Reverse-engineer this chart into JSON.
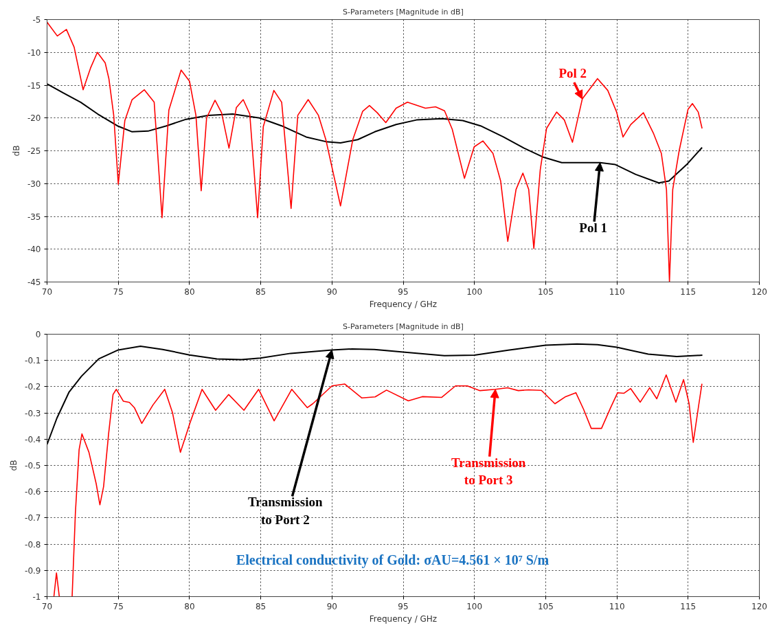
{
  "chart_data": [
    {
      "type": "line",
      "title": "S-Parameters [Magnitude in dB]",
      "xlabel": "Frequency / GHz",
      "ylabel": "dB",
      "xlim": [
        70,
        120
      ],
      "ylim": [
        -45,
        -5
      ],
      "xticks": [
        70,
        75,
        80,
        85,
        90,
        95,
        100,
        105,
        110,
        115,
        120
      ],
      "yticks": [
        -45,
        -40,
        -35,
        -30,
        -25,
        -20,
        -15,
        -10,
        -5
      ],
      "grid": true,
      "series": [
        {
          "name": "Pol 1",
          "color": "#000000",
          "x": [
            70,
            71.15,
            72.36,
            73.56,
            74.94,
            75.97,
            77.09,
            78.38,
            79.76,
            81.31,
            83.03,
            84.92,
            86.47,
            88.19,
            89.57,
            90.6,
            91.81,
            93.01,
            94.5,
            95.93,
            97.72,
            99.18,
            100.43,
            102.04,
            103.48,
            104.87,
            106.13,
            107.56,
            108.82,
            109.89,
            111.32,
            112.94,
            113.65,
            114.9,
            115.98
          ],
          "values": [
            -14.8,
            -16.2,
            -17.6,
            -19.4,
            -21.2,
            -22.1,
            -22.0,
            -21.2,
            -20.2,
            -19.6,
            -19.4,
            -20.0,
            -21.2,
            -22.9,
            -23.6,
            -23.8,
            -23.3,
            -22.1,
            -21.0,
            -20.3,
            -20.1,
            -20.4,
            -21.2,
            -22.9,
            -24.6,
            -26.0,
            -26.8,
            -26.8,
            -26.8,
            -27.1,
            -28.6,
            -29.9,
            -29.6,
            -27.1,
            -24.5
          ]
        },
        {
          "name": "Pol 2",
          "color": "#ff0000",
          "x": [
            70,
            70.72,
            71.36,
            71.9,
            72.53,
            73.05,
            73.53,
            74.08,
            74.34,
            74.68,
            75.0,
            75.46,
            75.97,
            76.83,
            77.52,
            78.07,
            78.55,
            79.41,
            80.0,
            80.45,
            80.82,
            81.2,
            81.79,
            82.25,
            82.77,
            83.29,
            83.77,
            84.23,
            84.78,
            85.18,
            85.92,
            86.47,
            87.13,
            87.6,
            88.33,
            89.05,
            89.57,
            90.6,
            91.46,
            92.15,
            92.63,
            93.18,
            93.78,
            94.5,
            95.3,
            96.56,
            97.27,
            97.9,
            98.44,
            99.3,
            99.98,
            100.6,
            101.3,
            101.84,
            102.34,
            102.92,
            103.4,
            103.81,
            104.17,
            104.62,
            105.06,
            105.77,
            106.31,
            106.88,
            107.57,
            108.64,
            109.36,
            109.98,
            110.43,
            110.97,
            111.86,
            112.58,
            113.12,
            113.48,
            113.69,
            113.92,
            114.37,
            114.99,
            115.3,
            115.71,
            115.98
          ],
          "values": [
            -5.4,
            -7.5,
            -6.5,
            -9.2,
            -15.7,
            -12.4,
            -10.0,
            -11.6,
            -14.0,
            -19.6,
            -30.1,
            -20.4,
            -17.2,
            -15.7,
            -17.6,
            -35.2,
            -18.8,
            -12.7,
            -14.4,
            -19.6,
            -31.1,
            -20.0,
            -17.3,
            -19.2,
            -24.6,
            -18.4,
            -17.2,
            -19.4,
            -35.2,
            -21.3,
            -15.8,
            -17.6,
            -33.8,
            -19.6,
            -17.2,
            -19.6,
            -23.3,
            -33.4,
            -23.3,
            -19.0,
            -18.1,
            -19.2,
            -20.7,
            -18.5,
            -17.6,
            -18.5,
            -18.3,
            -18.9,
            -21.7,
            -29.2,
            -24.4,
            -23.5,
            -25.4,
            -29.6,
            -38.8,
            -30.9,
            -28.4,
            -30.9,
            -39.9,
            -27.9,
            -21.6,
            -19.1,
            -20.3,
            -23.7,
            -17.1,
            -14.0,
            -15.8,
            -19.1,
            -22.9,
            -21.0,
            -19.2,
            -22.4,
            -25.4,
            -30.9,
            -45,
            -30.9,
            -25.0,
            -18.7,
            -17.8,
            -19.1,
            -21.6
          ]
        }
      ]
    },
    {
      "type": "line",
      "title": "S-Parameters [Magnitude in dB]",
      "xlabel": "Frequency / GHz",
      "ylabel": "dB",
      "xlim": [
        70,
        120
      ],
      "ylim": [
        -1,
        0
      ],
      "xticks": [
        70,
        75,
        80,
        85,
        90,
        95,
        100,
        105,
        110,
        115,
        120
      ],
      "yticks": [
        -1,
        -0.9,
        -0.8,
        -0.7,
        -0.6,
        -0.5,
        -0.4,
        -0.3,
        -0.2,
        -0.1,
        0
      ],
      "grid": true,
      "annotations": [
        "Electrical conductivity of Gold: σAU=4.561 × 10⁷ S/m"
      ],
      "series": [
        {
          "name": "Transmission\nto Port 2",
          "color": "#000000",
          "x": [
            70,
            70.69,
            71.55,
            72.42,
            73.63,
            75.0,
            76.56,
            78.12,
            80.0,
            81.92,
            83.64,
            84.97,
            87.1,
            90.0,
            91.42,
            92.97,
            95.0,
            97.89,
            100.0,
            102.37,
            105.0,
            107.2,
            108.64,
            110.0,
            112.2,
            114.2,
            116.0
          ],
          "values": [
            -0.42,
            -0.32,
            -0.22,
            -0.16,
            -0.094,
            -0.06,
            -0.046,
            -0.058,
            -0.079,
            -0.094,
            -0.097,
            -0.091,
            -0.073,
            -0.06,
            -0.056,
            -0.058,
            -0.068,
            -0.082,
            -0.08,
            -0.061,
            -0.042,
            -0.037,
            -0.04,
            -0.05,
            -0.076,
            -0.085,
            -0.08
          ]
        },
        {
          "name": "Transmission\nto Port 3",
          "color": "#ff0000",
          "x": [
            70.48,
            70.66,
            70.86,
            71.3,
            71.76,
            71.99,
            72.25,
            72.45,
            72.94,
            73.45,
            73.71,
            73.97,
            74.32,
            74.63,
            74.86,
            75.35,
            75.78,
            76.13,
            76.65,
            77.43,
            78.26,
            78.81,
            79.36,
            80.02,
            80.88,
            81.83,
            82.75,
            83.82,
            84.85,
            85.94,
            87.18,
            88.27,
            88.65,
            90.0,
            90.9,
            92.1,
            93.03,
            93.83,
            95.36,
            96.34,
            97.69,
            98.67,
            99.5,
            100.39,
            101.47,
            102.33,
            103.08,
            103.8,
            104.7,
            105.65,
            106.4,
            107.12,
            107.66,
            108.2,
            108.92,
            109.55,
            110.05,
            110.5,
            110.96,
            111.64,
            112.3,
            112.8,
            113.46,
            114.14,
            114.68,
            115.07,
            115.36,
            115.7,
            115.97
          ],
          "values": [
            -1.0,
            -0.91,
            -1.0,
            null,
            -1.0,
            -0.68,
            -0.44,
            -0.38,
            -0.45,
            -0.57,
            -0.65,
            -0.58,
            -0.38,
            -0.23,
            -0.21,
            -0.255,
            -0.26,
            -0.28,
            -0.34,
            -0.27,
            -0.21,
            -0.3,
            -0.45,
            -0.34,
            -0.21,
            -0.29,
            -0.23,
            -0.29,
            -0.21,
            -0.33,
            -0.21,
            -0.28,
            -0.265,
            -0.197,
            -0.19,
            -0.243,
            -0.239,
            -0.213,
            -0.254,
            -0.238,
            -0.241,
            -0.197,
            -0.197,
            -0.215,
            -0.21,
            -0.204,
            -0.215,
            -0.212,
            -0.214,
            -0.265,
            -0.238,
            -0.223,
            -0.286,
            -0.359,
            -0.359,
            -0.281,
            -0.223,
            -0.225,
            -0.207,
            -0.259,
            -0.204,
            -0.246,
            -0.155,
            -0.259,
            -0.173,
            -0.265,
            -0.412,
            -0.286,
            -0.189
          ]
        }
      ]
    }
  ]
}
